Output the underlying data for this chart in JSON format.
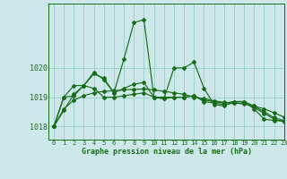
{
  "xlabel": "Graphe pression niveau de la mer (hPa)",
  "background_color": "#cce8e8",
  "grid_color": "#99cccc",
  "line_color": "#1a6b1a",
  "ylim": [
    1017.55,
    1022.2
  ],
  "xlim": [
    -0.5,
    23
  ],
  "yticks": [
    1018,
    1019,
    1020
  ],
  "xticks": [
    0,
    1,
    2,
    3,
    4,
    5,
    6,
    7,
    8,
    9,
    10,
    11,
    12,
    13,
    14,
    15,
    16,
    17,
    18,
    19,
    20,
    21,
    22,
    23
  ],
  "s1": [
    1018.0,
    1018.55,
    1019.1,
    1019.4,
    1019.8,
    1019.65,
    1019.15,
    1020.3,
    1021.55,
    1021.65,
    1019.0,
    1018.95,
    1020.0,
    1020.0,
    1020.2,
    1019.3,
    1018.75,
    1018.7,
    1018.85,
    1018.85,
    1018.6,
    1018.25,
    1018.2,
    1018.2
  ],
  "s2": [
    1018.0,
    1019.0,
    1019.05,
    1019.4,
    1019.3,
    1019.0,
    1019.0,
    1019.05,
    1019.1,
    1019.15,
    1019.0,
    1018.95,
    1019.0,
    1019.0,
    1019.05,
    1018.9,
    1018.85,
    1018.8,
    1018.85,
    1018.85,
    1018.7,
    1018.5,
    1018.3,
    1018.2
  ],
  "s3": [
    1018.0,
    1019.0,
    1019.4,
    1019.4,
    1019.85,
    1019.6,
    1019.15,
    1019.3,
    1019.45,
    1019.5,
    1019.0,
    1019.0,
    1019.0,
    1019.0,
    1019.05,
    1018.85,
    1018.8,
    1018.75,
    1018.8,
    1018.8,
    1018.65,
    1018.45,
    1018.25,
    1018.15
  ],
  "s4": [
    1018.0,
    1018.6,
    1018.9,
    1019.05,
    1019.15,
    1019.2,
    1019.22,
    1019.25,
    1019.27,
    1019.28,
    1019.25,
    1019.2,
    1019.15,
    1019.1,
    1019.0,
    1018.95,
    1018.88,
    1018.82,
    1018.8,
    1018.77,
    1018.7,
    1018.6,
    1018.47,
    1018.32
  ]
}
